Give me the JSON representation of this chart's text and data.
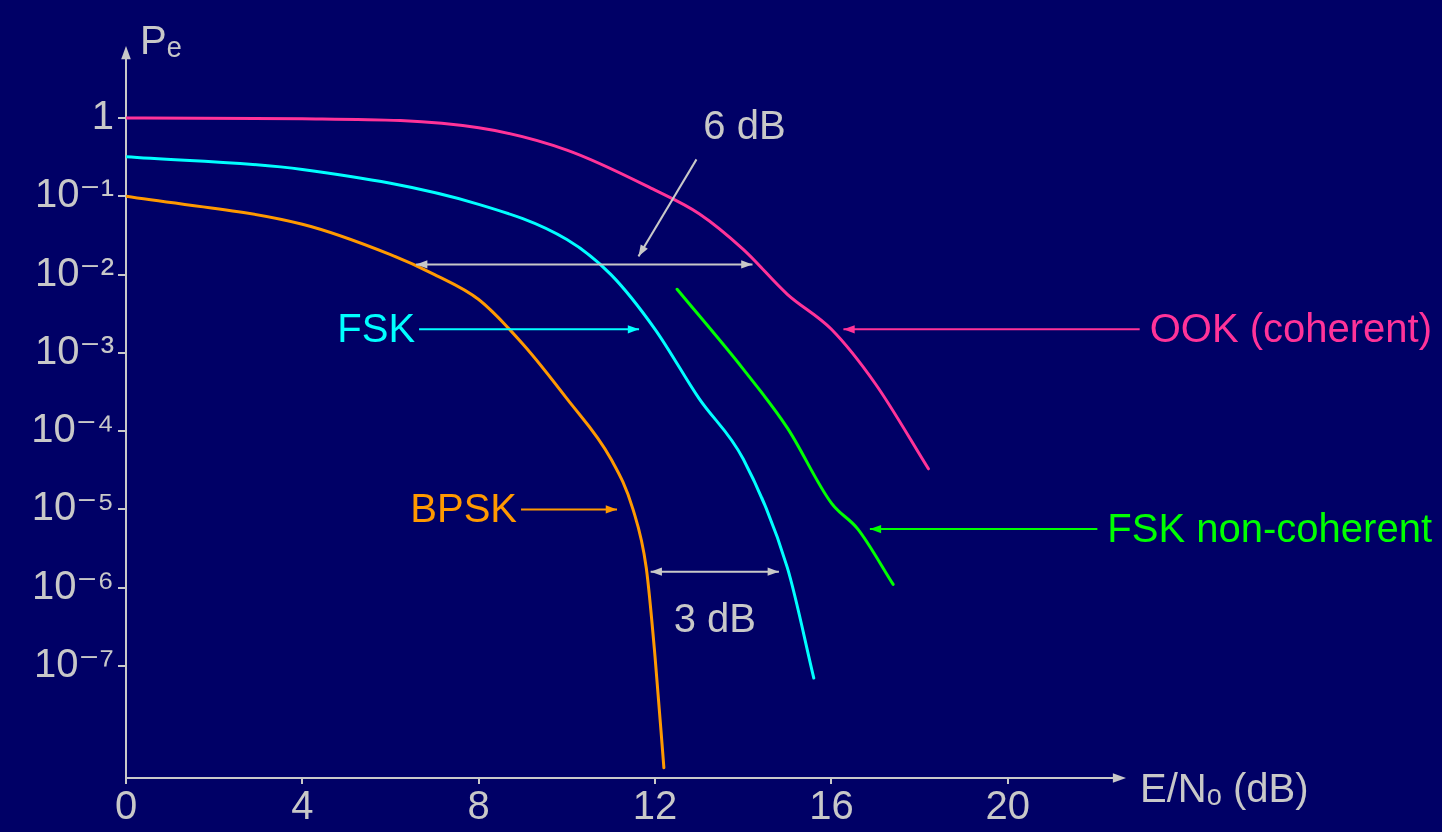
{
  "chart_data": {
    "type": "line",
    "xlabel": "E/Nₒ (dB)",
    "ylabel": "Pₑ",
    "log": true,
    "marker": "none",
    "xlim": [
      0,
      22.5
    ],
    "xticks": [
      0,
      4,
      8,
      12,
      16,
      20
    ],
    "ylim": [
      3.7e-09,
      7.4
    ],
    "yticks": [
      {
        "value": 1e-07,
        "label": "10⁻⁷"
      },
      {
        "value": 1e-06,
        "label": "10⁻⁶"
      },
      {
        "value": 1e-05,
        "label": "10⁻⁵"
      },
      {
        "value": 0.0001,
        "label": "10⁻⁴"
      },
      {
        "value": 0.001,
        "label": "10⁻³"
      },
      {
        "value": 0.01,
        "label": "10⁻²"
      },
      {
        "value": 0.1,
        "label": "10⁻¹"
      },
      1
    ],
    "series": [
      {
        "name": "OOK (coherent)",
        "color": "#ff3399",
        "x": [
          0,
          4,
          8,
          10,
          12,
          13,
          14,
          15,
          16,
          17,
          18.2
        ],
        "values": [
          1,
          0.98,
          0.75,
          0.39,
          0.12,
          0.06,
          0.021,
          0.0056,
          0.002,
          0.0004,
          3.3e-05
        ]
      },
      {
        "name": "FSK",
        "color": "#00ffff",
        "x": [
          0,
          4,
          8,
          10,
          11,
          12,
          13,
          14,
          15,
          15.6
        ],
        "values": [
          0.32,
          0.22,
          0.079,
          0.028,
          0.01,
          0.002,
          0.00026,
          4.4e-05,
          1.8e-06,
          7e-08
        ]
      },
      {
        "name": "BPSK",
        "color": "#ff9900",
        "x": [
          0,
          4,
          6,
          7,
          8,
          9,
          10,
          11,
          11.5,
          11.8,
          12,
          12.2
        ],
        "values": [
          0.1,
          0.044,
          0.018,
          0.01,
          0.0048,
          0.0013,
          0.00026,
          4.4e-05,
          1e-05,
          1.8e-06,
          1.3e-07,
          5e-09
        ]
      },
      {
        "name": "FSK non-coherent",
        "color": "#00ff00",
        "x": [
          12.5,
          14,
          15,
          16,
          16.6,
          17.4
        ],
        "values": [
          0.0065,
          0.00062,
          0.00011,
          1.2e-05,
          5.6e-06,
          1.1e-06
        ]
      }
    ],
    "annotations": [
      {
        "text": "6 dB",
        "x": 14.3,
        "y": 0.0135
      },
      {
        "text": "3 dB",
        "x": 14.9,
        "y": 1.6e-06
      }
    ]
  }
}
